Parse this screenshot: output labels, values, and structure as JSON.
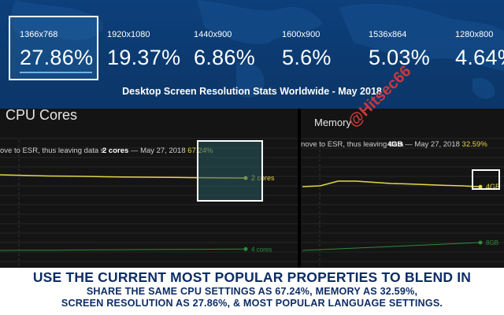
{
  "resolutions": {
    "items": [
      {
        "label": "1366x768",
        "value": "27.86%",
        "bar": 0.9
      },
      {
        "label": "1920x1080",
        "value": "19.37%",
        "bar": 0.0
      },
      {
        "label": "1440x900",
        "value": "6.86%",
        "bar": 0.0
      },
      {
        "label": "1600x900",
        "value": "5.6%",
        "bar": 0.0
      },
      {
        "label": "1536x864",
        "value": "5.03%",
        "bar": 0.0
      },
      {
        "label": "1280x800",
        "value": "4.64%",
        "bar": 0.0
      }
    ],
    "title": "Desktop Screen Resolution Stats Worldwide - May 2018"
  },
  "cpu": {
    "title": "CPU Cores",
    "tooltip": {
      "prefix": "ove to ESR, thus leaving data s",
      "series": "2 cores",
      "sep": " — ",
      "date": "May 27, 2018",
      "value": "67.24%"
    },
    "line_color": "#e4d64a",
    "series_color_2": "#2e8b3e"
  },
  "memory": {
    "title": "Memory",
    "tooltip": {
      "prefix": "nove to ESR, thus leaving data",
      "series": "4GB",
      "sep": " — ",
      "date": "May 27, 2018",
      "value": "32.59%"
    },
    "line_color": "#e4d64a",
    "series_color_2": "#2e8b3e"
  },
  "banner": {
    "line1": "USE THE CURRENT MOST POPULAR PROPERTIES TO BLEND IN",
    "line2": "SHARE THE SAME CPU SETTINGS AS 67.24%, MEMORY AS 32.59%,",
    "line3": "SCREEN RESOLUTION AS 27.86%, & MOST POPULAR LANGUAGE SETTINGS."
  },
  "watermark": "@Hitsec66",
  "chart_data": [
    {
      "type": "line",
      "title": "CPU Cores",
      "series": [
        {
          "name": "2 cores",
          "values": [
            70,
            69.5,
            69,
            68.8,
            68.5,
            68.2,
            68,
            67.8,
            67.6,
            67.4,
            67.24
          ]
        },
        {
          "name": "4 cores",
          "values": [
            5,
            5.5,
            6,
            6.5,
            7,
            7.5,
            8,
            8.5,
            9,
            9.5,
            10
          ]
        }
      ],
      "annotation": "May 27, 2018 67.24%"
    },
    {
      "type": "line",
      "title": "Memory",
      "series": [
        {
          "name": "4GB",
          "values": [
            22,
            33,
            35,
            35,
            34.5,
            34,
            33.8,
            33.5,
            33.2,
            33,
            32.59
          ]
        },
        {
          "name": "8GB",
          "values": [
            2,
            3,
            4,
            5,
            6,
            7,
            8,
            9,
            10,
            11,
            12
          ]
        }
      ],
      "annotation": "May 27, 2018 32.59%"
    }
  ]
}
